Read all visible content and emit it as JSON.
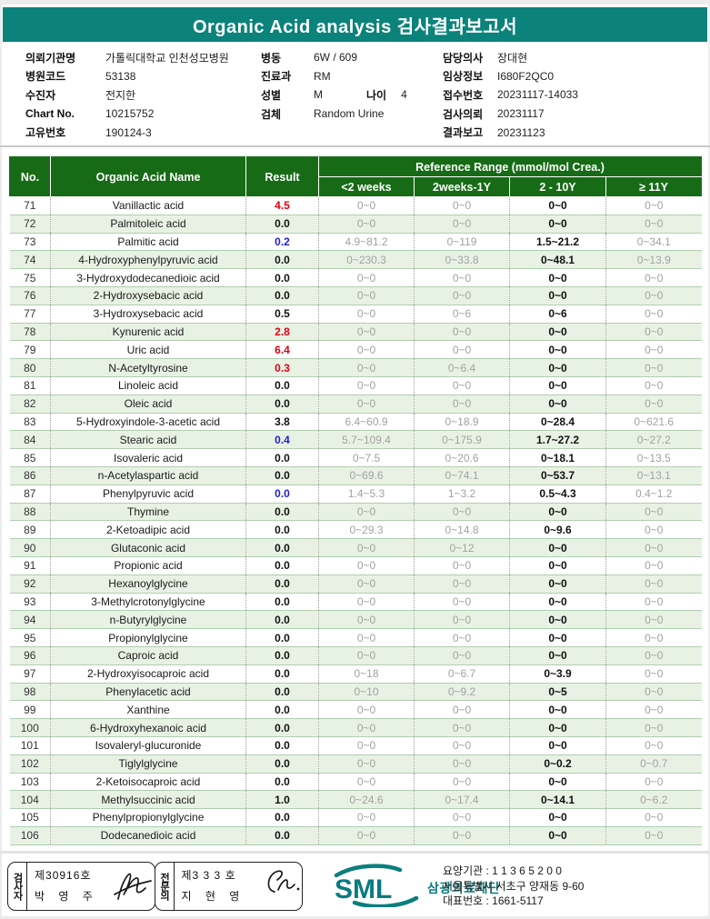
{
  "title": "Organic Acid analysis 검사결과보고서",
  "colors": {
    "accent_teal": "#0b837b",
    "header_green": "#176b17",
    "row_alt_green": "#e8f2e4",
    "high_flag_red": "#e60012",
    "low_flag_blue": "#1f1fd0",
    "range_gray": "#a2a2a2"
  },
  "patient_info": {
    "col1": [
      {
        "label": "의뢰기관명",
        "value": "가톨릭대학교 인천성모병원"
      },
      {
        "label": "병원코드",
        "value": "53138"
      },
      {
        "label": "수진자",
        "value": "전지한"
      },
      {
        "label": "Chart No.",
        "value": "10215752"
      },
      {
        "label": "고유번호",
        "value": "190124-3"
      }
    ],
    "col2": [
      {
        "label": "병동",
        "value": "6W / 609"
      },
      {
        "label": "진료과",
        "value": "RM"
      },
      {
        "label": "성별",
        "value": "M",
        "label2": "나이",
        "value2": "4"
      },
      {
        "label": "검체",
        "value": "Random Urine"
      }
    ],
    "col3": [
      {
        "label": "담당의사",
        "value": "장대현"
      },
      {
        "label": "임상정보",
        "value": "I680F2QC0"
      },
      {
        "label": "접수번호",
        "value": "20231117-14033"
      },
      {
        "label": "검사의뢰",
        "value": "20231117"
      },
      {
        "label": "결과보고",
        "value": "20231123"
      }
    ]
  },
  "table": {
    "col_no": "No.",
    "col_name": "Organic Acid Name",
    "col_result": "Result",
    "ref_header": "Reference Range (mmol/mol Crea.)",
    "sub_headers": [
      "<2 weeks",
      "2weeks-1Y",
      "2 - 10Y",
      "≥ 11Y"
    ],
    "rows": [
      {
        "no": "71",
        "name": "Vanillactic acid",
        "result": "4.5",
        "flag": "H",
        "ranges": [
          "0~0",
          "0~0",
          "0~0",
          "0~0"
        ]
      },
      {
        "no": "72",
        "name": "Palmitoleic acid",
        "result": "0.0",
        "flag": "",
        "ranges": [
          "0~0",
          "0~0",
          "0~0",
          "0~0"
        ]
      },
      {
        "no": "73",
        "name": "Palmitic acid",
        "result": "0.2",
        "flag": "L",
        "ranges": [
          "4.9~81.2",
          "0~119",
          "1.5~21.2",
          "0~34.1"
        ]
      },
      {
        "no": "74",
        "name": "4-Hydroxyphenylpyruvic acid",
        "result": "0.0",
        "flag": "",
        "ranges": [
          "0~230.3",
          "0~33.8",
          "0~48.1",
          "0~13.9"
        ]
      },
      {
        "no": "75",
        "name": "3-Hydroxydodecanedioic acid",
        "result": "0.0",
        "flag": "",
        "ranges": [
          "0~0",
          "0~0",
          "0~0",
          "0~0"
        ]
      },
      {
        "no": "76",
        "name": "2-Hydroxysebacic acid",
        "result": "0.0",
        "flag": "",
        "ranges": [
          "0~0",
          "0~0",
          "0~0",
          "0~0"
        ]
      },
      {
        "no": "77",
        "name": "3-Hydroxysebacic acid",
        "result": "0.5",
        "flag": "",
        "ranges": [
          "0~0",
          "0~6",
          "0~6",
          "0~0"
        ]
      },
      {
        "no": "78",
        "name": "Kynurenic acid",
        "result": "2.8",
        "flag": "H",
        "ranges": [
          "0~0",
          "0~0",
          "0~0",
          "0~0"
        ]
      },
      {
        "no": "79",
        "name": "Uric acid",
        "result": "6.4",
        "flag": "H",
        "ranges": [
          "0~0",
          "0~0",
          "0~0",
          "0~0"
        ]
      },
      {
        "no": "80",
        "name": "N-Acetyltyrosine",
        "result": "0.3",
        "flag": "H",
        "ranges": [
          "0~0",
          "0~6.4",
          "0~0",
          "0~0"
        ]
      },
      {
        "no": "81",
        "name": "Linoleic acid",
        "result": "0.0",
        "flag": "",
        "ranges": [
          "0~0",
          "0~0",
          "0~0",
          "0~0"
        ]
      },
      {
        "no": "82",
        "name": "Oleic acid",
        "result": "0.0",
        "flag": "",
        "ranges": [
          "0~0",
          "0~0",
          "0~0",
          "0~0"
        ]
      },
      {
        "no": "83",
        "name": "5-Hydroxyindole-3-acetic acid",
        "result": "3.8",
        "flag": "",
        "ranges": [
          "6.4~60.9",
          "0~18.9",
          "0~28.4",
          "0~621.6"
        ]
      },
      {
        "no": "84",
        "name": "Stearic acid",
        "result": "0.4",
        "flag": "L",
        "ranges": [
          "5.7~109.4",
          "0~175.9",
          "1.7~27.2",
          "0~27.2"
        ]
      },
      {
        "no": "85",
        "name": "Isovaleric acid",
        "result": "0.0",
        "flag": "",
        "ranges": [
          "0~7.5",
          "0~20.6",
          "0~18.1",
          "0~13.5"
        ]
      },
      {
        "no": "86",
        "name": "n-Acetylaspartic acid",
        "result": "0.0",
        "flag": "",
        "ranges": [
          "0~69.6",
          "0~74.1",
          "0~53.7",
          "0~13.1"
        ]
      },
      {
        "no": "87",
        "name": "Phenylpyruvic acid",
        "result": "0.0",
        "flag": "L",
        "ranges": [
          "1.4~5.3",
          "1~3.2",
          "0.5~4.3",
          "0.4~1.2"
        ]
      },
      {
        "no": "88",
        "name": "Thymine",
        "result": "0.0",
        "flag": "",
        "ranges": [
          "0~0",
          "0~0",
          "0~0",
          "0~0"
        ]
      },
      {
        "no": "89",
        "name": "2-Ketoadipic acid",
        "result": "0.0",
        "flag": "",
        "ranges": [
          "0~29.3",
          "0~14.8",
          "0~9.6",
          "0~0"
        ]
      },
      {
        "no": "90",
        "name": "Glutaconic acid",
        "result": "0.0",
        "flag": "",
        "ranges": [
          "0~0",
          "0~12",
          "0~0",
          "0~0"
        ]
      },
      {
        "no": "91",
        "name": "Propionic acid",
        "result": "0.0",
        "flag": "",
        "ranges": [
          "0~0",
          "0~0",
          "0~0",
          "0~0"
        ]
      },
      {
        "no": "92",
        "name": "Hexanoylglycine",
        "result": "0.0",
        "flag": "",
        "ranges": [
          "0~0",
          "0~0",
          "0~0",
          "0~0"
        ]
      },
      {
        "no": "93",
        "name": "3-Methylcrotonylglycine",
        "result": "0.0",
        "flag": "",
        "ranges": [
          "0~0",
          "0~0",
          "0~0",
          "0~0"
        ]
      },
      {
        "no": "94",
        "name": "n-Butyrylglycine",
        "result": "0.0",
        "flag": "",
        "ranges": [
          "0~0",
          "0~0",
          "0~0",
          "0~0"
        ]
      },
      {
        "no": "95",
        "name": "Propionylglycine",
        "result": "0.0",
        "flag": "",
        "ranges": [
          "0~0",
          "0~0",
          "0~0",
          "0~0"
        ]
      },
      {
        "no": "96",
        "name": "Caproic acid",
        "result": "0.0",
        "flag": "",
        "ranges": [
          "0~0",
          "0~0",
          "0~0",
          "0~0"
        ]
      },
      {
        "no": "97",
        "name": "2-Hydroxyisocaproic acid",
        "result": "0.0",
        "flag": "",
        "ranges": [
          "0~18",
          "0~6.7",
          "0~3.9",
          "0~0"
        ]
      },
      {
        "no": "98",
        "name": "Phenylacetic acid",
        "result": "0.0",
        "flag": "",
        "ranges": [
          "0~10",
          "0~9.2",
          "0~5",
          "0~0"
        ]
      },
      {
        "no": "99",
        "name": "Xanthine",
        "result": "0.0",
        "flag": "",
        "ranges": [
          "0~0",
          "0~0",
          "0~0",
          "0~0"
        ]
      },
      {
        "no": "100",
        "name": "6-Hydroxyhexanoic acid",
        "result": "0.0",
        "flag": "",
        "ranges": [
          "0~0",
          "0~0",
          "0~0",
          "0~0"
        ]
      },
      {
        "no": "101",
        "name": "Isovaleryl-glucuronide",
        "result": "0.0",
        "flag": "",
        "ranges": [
          "0~0",
          "0~0",
          "0~0",
          "0~0"
        ]
      },
      {
        "no": "102",
        "name": "Tiglylglycine",
        "result": "0.0",
        "flag": "",
        "ranges": [
          "0~0",
          "0~0",
          "0~0.2",
          "0~0.7"
        ]
      },
      {
        "no": "103",
        "name": "2-Ketoisocaproic acid",
        "result": "0.0",
        "flag": "",
        "ranges": [
          "0~0",
          "0~0",
          "0~0",
          "0~0"
        ]
      },
      {
        "no": "104",
        "name": "Methylsuccinic acid",
        "result": "1.0",
        "flag": "",
        "ranges": [
          "0~24.6",
          "0~17.4",
          "0~14.1",
          "0~6.2"
        ]
      },
      {
        "no": "105",
        "name": "Phenylpropionylglycine",
        "result": "0.0",
        "flag": "",
        "ranges": [
          "0~0",
          "0~0",
          "0~0",
          "0~0"
        ]
      },
      {
        "no": "106",
        "name": "Dodecanedioic acid",
        "result": "0.0",
        "flag": "",
        "ranges": [
          "0~0",
          "0~0",
          "0~0",
          "0~0"
        ]
      }
    ]
  },
  "footer": {
    "certifier": {
      "role": "검사자",
      "cert_no": "제30916호",
      "name": "박 영 주"
    },
    "specialist": {
      "role": "전문의",
      "cert_no": "제3 3 3 호",
      "name": "지 현 영"
    },
    "org": {
      "logo_text": "SML",
      "org_name": "삼광의료재단",
      "line1": "요양기관 : 1 1 3 6 5 2 0 0",
      "line2": "서울특별시 서초구 양재동 9-60",
      "line3": "대표번호 : 1661-5117"
    }
  }
}
